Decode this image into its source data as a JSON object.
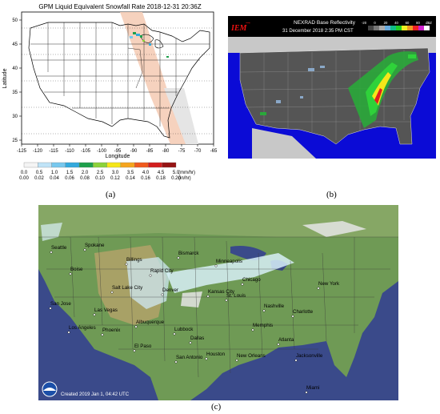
{
  "panel_a": {
    "title": "GPM Liquid Equivalent Snowfall Rate 2018-12-31 20:36Z",
    "xlabel": "Longitude",
    "ylabel": "Latitude",
    "x_ticks": [
      "-125",
      "-120",
      "-115",
      "-110",
      "-105",
      "-100",
      "-95",
      "-90",
      "-85",
      "-80",
      "-75",
      "-70",
      "-65"
    ],
    "y_ticks": [
      "50",
      "45",
      "40",
      "35",
      "30",
      "25"
    ],
    "legend_mmhr": [
      "0.0",
      "0.5",
      "1.0",
      "1.5",
      "2.0",
      "2.5",
      "3.0",
      "3.5",
      "4.0",
      "4.5",
      "5.0"
    ],
    "legend_inhr": [
      "0.00",
      "0.02",
      "0.04",
      "0.06",
      "0.08",
      "0.10",
      "0.12",
      "0.14",
      "0.16",
      "0.18",
      "0.20"
    ],
    "unit_mmhr": "(mm/hr)",
    "unit_inhr": "(in/hr)",
    "legend_colors": [
      "#f4f4f4",
      "#bfe3f7",
      "#78c8ee",
      "#33aadd",
      "#1ea04b",
      "#8cd23a",
      "#f5e619",
      "#f5a51e",
      "#f05a1e",
      "#d21e1e",
      "#961414"
    ],
    "caption": "(a)"
  },
  "panel_b": {
    "logo": "IEM",
    "title": "NEXRAD Base Reflectivity",
    "timestamp": "31 December 2018 2:35 PM CST",
    "scale_labels": [
      "-20",
      "0",
      "20",
      "40",
      "60",
      "80",
      "dBZ"
    ],
    "caption": "(b)"
  },
  "panel_c": {
    "cities": [
      "Seattle",
      "Spokane",
      "Billings",
      "Bismarck",
      "Minneapolis",
      "Boise",
      "Rapid City",
      "Chicago",
      "New York",
      "Salt Lake City",
      "Denver",
      "Kansas City",
      "St. Louis",
      "San Jose",
      "Las Vegas",
      "Nashville",
      "Charlotte",
      "Memphis",
      "Albuquerque",
      "Los Angeles",
      "Phoenix",
      "Lubbock",
      "Dallas",
      "Atlanta",
      "El Paso",
      "San Antonio",
      "Houston",
      "New Orleans",
      "Jacksonville",
      "Miami"
    ],
    "footer": "Created 2019 Jan 1, 04:42 UTC",
    "caption": "(c)"
  }
}
